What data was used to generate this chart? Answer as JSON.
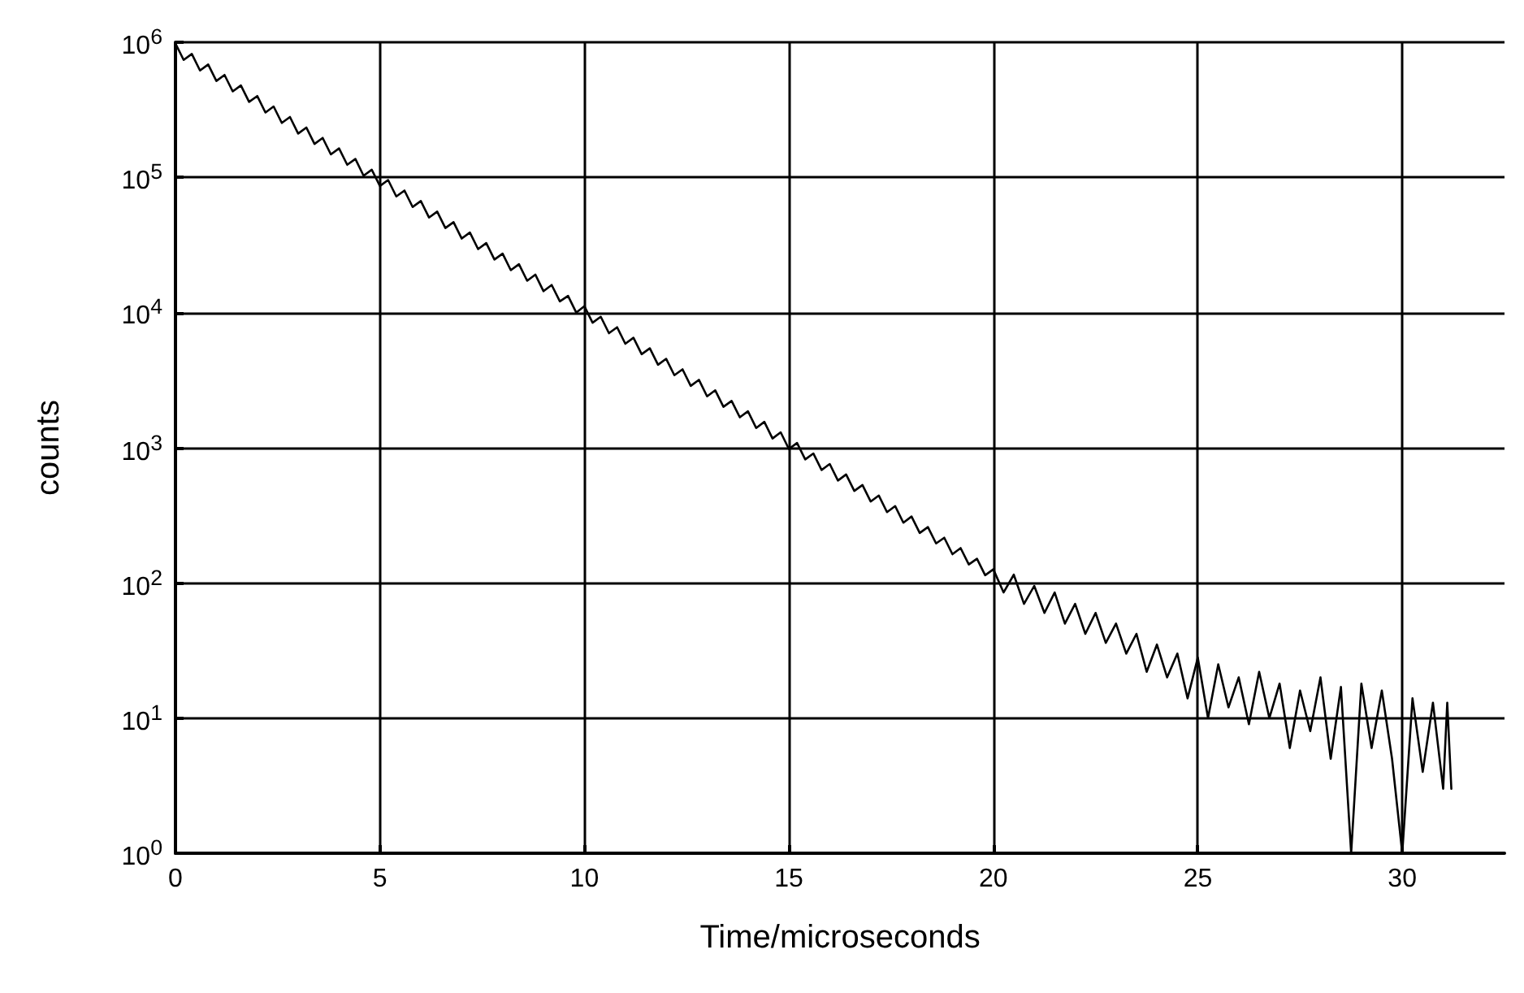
{
  "chart_data": {
    "type": "line",
    "xlabel": "Time/microseconds",
    "ylabel": "counts",
    "log": "y",
    "grid": true,
    "marker": "none",
    "line_style": "solid",
    "xlim": [
      0,
      32.5
    ],
    "xticks": [
      0,
      5,
      10,
      15,
      20,
      25,
      30
    ],
    "ylim": [
      1,
      1000000
    ],
    "yticks": [
      {
        "value": 1,
        "label": "10$^{0}$"
      },
      {
        "value": 10,
        "label": "10$^{1}$"
      },
      {
        "value": 100,
        "label": "10$^{2}$"
      },
      {
        "value": 1000,
        "label": "10$^{3}$"
      },
      {
        "value": 10000,
        "label": "10$^{4}$"
      },
      {
        "value": 100000,
        "label": "10$^{5}$"
      },
      {
        "value": 1000000,
        "label": "10$^{6}$"
      }
    ],
    "series": [
      {
        "color": "#000000",
        "x": [
          0,
          0.2,
          0.4,
          0.6,
          0.8,
          1,
          1.2,
          1.4,
          1.6,
          1.8,
          2,
          2.2,
          2.4,
          2.6,
          2.8,
          3,
          3.2,
          3.4,
          3.6,
          3.8,
          4,
          4.2,
          4.4,
          4.6,
          4.8,
          5,
          5.2,
          5.4,
          5.6,
          5.8,
          6,
          6.2,
          6.4,
          6.6,
          6.8,
          7,
          7.2,
          7.4,
          7.6,
          7.8,
          8,
          8.2,
          8.4,
          8.6,
          8.8,
          9,
          9.2,
          9.4,
          9.6,
          9.8,
          10,
          10.2,
          10.4,
          10.6,
          10.8,
          11,
          11.2,
          11.4,
          11.6,
          11.8,
          12,
          12.2,
          12.4,
          12.6,
          12.8,
          13,
          13.2,
          13.4,
          13.6,
          13.8,
          14,
          14.2,
          14.4,
          14.6,
          14.8,
          15,
          15.2,
          15.4,
          15.6,
          15.8,
          16,
          16.2,
          16.4,
          16.6,
          16.8,
          17,
          17.2,
          17.4,
          17.6,
          17.8,
          18,
          18.2,
          18.4,
          18.6,
          18.8,
          19,
          19.2,
          19.4,
          19.6,
          19.8,
          20,
          20.25,
          20.5,
          20.75,
          21,
          21.25,
          21.5,
          21.75,
          22,
          22.25,
          22.5,
          22.75,
          23,
          23.25,
          23.5,
          23.75,
          24,
          24.25,
          24.5,
          24.75,
          25,
          25.25,
          25.5,
          25.75,
          26,
          26.25,
          26.5,
          26.75,
          27,
          27.25,
          27.5,
          27.75,
          28,
          28.25,
          28.5,
          28.75,
          29,
          29.25,
          29.5,
          29.75,
          30,
          30.25,
          30.5,
          30.75,
          31,
          31.1,
          31.2
        ],
        "values": [
          980000,
          740000,
          819000,
          618000,
          685000,
          517000,
          573000,
          433000,
          479000,
          362000,
          400000,
          302000,
          335000,
          253000,
          280000,
          211000,
          234000,
          177000,
          196000,
          148000,
          164000,
          124000,
          137000,
          103000,
          114000,
          86400,
          95700,
          72300,
          80000,
          60400,
          66900,
          50500,
          55900,
          42200,
          46700,
          35300,
          39100,
          29500,
          32700,
          24700,
          27300,
          20600,
          22800,
          17200,
          19100,
          14400,
          16000,
          12100,
          13300,
          10000,
          11150,
          8420,
          9320,
          7040,
          7790,
          5880,
          6510,
          4920,
          5445,
          4110,
          4550,
          3440,
          3805,
          2870,
          3180,
          2400,
          2660,
          2010,
          2220,
          1680,
          1860,
          1400,
          1555,
          1170,
          1300,
          980,
          1085,
          820,
          907,
          685,
          758,
          572,
          634,
          479,
          530,
          400,
          443,
          334,
          370,
          279,
          310,
          234,
          259,
          196,
          216,
          163,
          181,
          137,
          151,
          114,
          126,
          85,
          115,
          70,
          95,
          60,
          85,
          50,
          70,
          42,
          60,
          36,
          50,
          30,
          42,
          22,
          35,
          20,
          30,
          14,
          28,
          10,
          25,
          12,
          20,
          9,
          22,
          10,
          18,
          6,
          16,
          8,
          20,
          5,
          17,
          1,
          18,
          6,
          16,
          5,
          1,
          14,
          4,
          13,
          3,
          13,
          3
        ]
      }
    ]
  }
}
